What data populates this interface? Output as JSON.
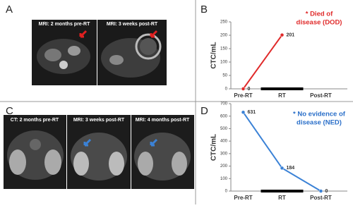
{
  "panel_labels": [
    "A",
    "B",
    "C",
    "D"
  ],
  "images": [
    {
      "caption": "MRI: 2 months pre-RT"
    },
    {
      "caption": "MRI: 3 weeks post-RT"
    },
    {
      "caption": "CT: 2 months pre-RT"
    },
    {
      "caption": "MRI: 3 weeks post-RT"
    },
    {
      "caption": "MRI: 4 months post-RT"
    }
  ],
  "chart_data": [
    {
      "type": "line",
      "y_label": "CTC/mL",
      "categories": [
        "Pre-RT",
        "RT",
        "Post-RT"
      ],
      "values": [
        0,
        201,
        null
      ],
      "color": "#e02a2a",
      "annotation": [
        "* Died of",
        "disease (DOD)"
      ],
      "annotation_color": "#e02a2a",
      "ylim": [
        0,
        250
      ],
      "yticks": [
        0,
        50,
        100,
        150,
        200,
        250
      ]
    },
    {
      "type": "line",
      "y_label": "CTC/mL",
      "categories": [
        "Pre-RT",
        "RT",
        "Post-RT"
      ],
      "values": [
        631,
        184,
        0
      ],
      "color": "#3b82d6",
      "annotation": [
        "* No evidence of",
        "disease (NED)"
      ],
      "annotation_color": "#2a6fc9",
      "ylim": [
        0,
        700
      ],
      "yticks": [
        0,
        100,
        200,
        300,
        400,
        500,
        600,
        700
      ]
    }
  ]
}
